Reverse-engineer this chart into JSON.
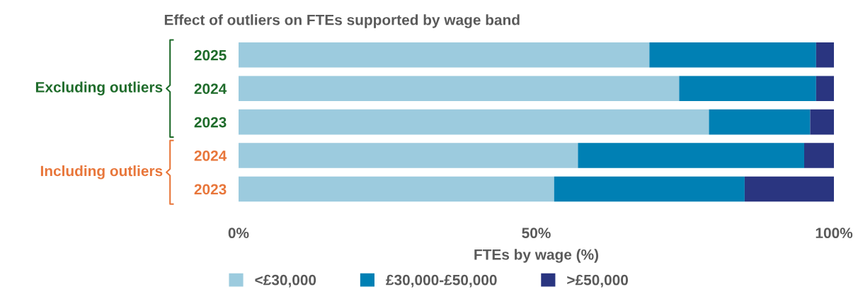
{
  "chart_data": {
    "type": "bar",
    "orientation": "horizontal",
    "stacked": true,
    "title": "Effect of outliers on FTEs supported by wage band",
    "xlabel": "FTEs by wage (%)",
    "categories": [
      "2025",
      "2024",
      "2023",
      "2024",
      "2023"
    ],
    "series": [
      {
        "name": "<£30,000",
        "color": "#9ccbde",
        "values": [
          69,
          74,
          79,
          57,
          53
        ]
      },
      {
        "name": "£30,000-£50,000",
        "color": "#0080b4",
        "values": [
          28,
          23,
          17,
          38,
          32
        ]
      },
      {
        "name": ">£50,000",
        "color": "#2a3580",
        "values": [
          3,
          3,
          4,
          5,
          15
        ]
      }
    ],
    "xlim": [
      0,
      100
    ],
    "xticks": [
      {
        "value": 0,
        "label": "0%"
      },
      {
        "value": 50,
        "label": "50%"
      },
      {
        "value": 100,
        "label": "100%"
      }
    ],
    "annotations": [
      "Excluding outliers",
      "Including outliers"
    ],
    "legend": "bottom",
    "grid": false
  }
}
